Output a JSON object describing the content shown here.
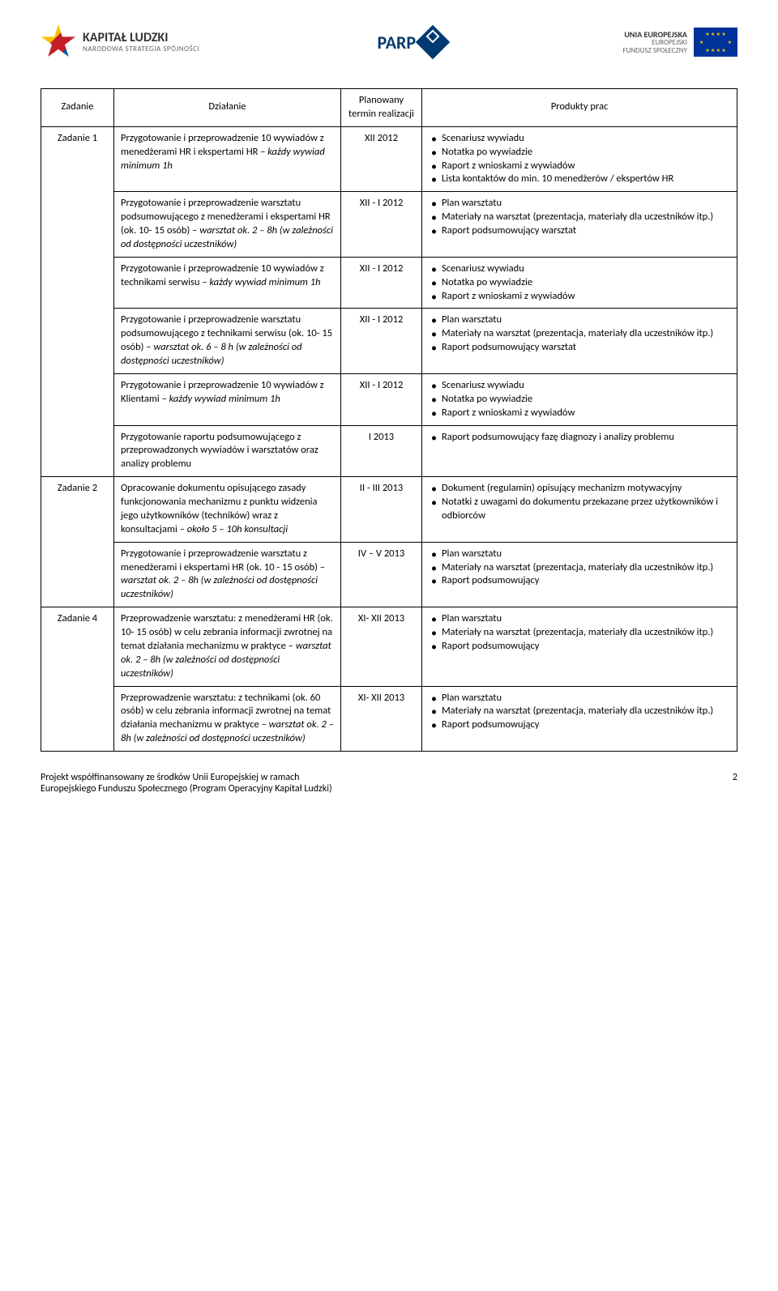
{
  "logos": {
    "left_title": "KAPITAŁ LUDZKI",
    "left_sub": "NARODOWA STRATEGIA SPÓJNOŚCI",
    "center": "PARP",
    "right_title": "UNIA EUROPEJSKA",
    "right_sub1": "EUROPEJSKI",
    "right_sub2": "FUNDUSZ SPOŁECZNY"
  },
  "headers": {
    "zadanie": "Zadanie",
    "dzialanie": "Działanie",
    "termin": "Planowany termin realizacji",
    "produkty": "Produkty prac"
  },
  "zadanie1_label": "Zadanie 1",
  "zadanie2_label": "Zadanie 2",
  "zadanie4_label": "Zadanie 4",
  "rows": [
    {
      "dzial": "Przygotowanie i przeprowadzenie 10 wywiadów z menedżerami HR i ekspertami HR – każdy wywiad minimum 1h",
      "dzial_italic": "każdy wywiad minimum 1h",
      "termin": "XII 2012",
      "prod": [
        "Scenariusz wywiadu",
        "Notatka po wywiadzie",
        "Raport z wnioskami z wywiadów",
        "Lista kontaktów do min. 10 menedżerów / ekspertów HR"
      ]
    },
    {
      "dzial_p1": "Przygotowanie i przeprowadzenie warsztatu podsumowującego z menedżerami i ekspertami HR (ok. 10- 15 osób) – ",
      "dzial_it": "warsztat ok. 2 – 8h (w zależności od dostępności uczestników)",
      "termin": "XII - I 2012",
      "prod": [
        "Plan warsztatu",
        "Materiały na warsztat (prezentacja, materiały dla uczestników itp.)",
        "Raport podsumowujący warsztat"
      ]
    },
    {
      "dzial_p1": "Przygotowanie i przeprowadzenie 10 wywiadów z technikami serwisu – ",
      "dzial_it": "każdy wywiad minimum 1h",
      "termin": "XII - I 2012",
      "prod": [
        "Scenariusz wywiadu",
        "Notatka po wywiadzie",
        "Raport z wnioskami z wywiadów"
      ]
    },
    {
      "dzial_p1": "Przygotowanie i przeprowadzenie warsztatu podsumowującego z technikami serwisu (ok. 10- 15 osób) – ",
      "dzial_it": "warsztat ok. 6 – 8 h (w zależności od dostępności uczestników)",
      "termin": "XII - I 2012",
      "prod": [
        "Plan warsztatu",
        "Materiały na warsztat (prezentacja, materiały dla uczestników itp.)",
        "Raport podsumowujący warsztat"
      ]
    },
    {
      "dzial_p1": "Przygotowanie i przeprowadzenie 10 wywiadów z Klientami  – ",
      "dzial_it": "każdy wywiad minimum 1h",
      "termin": "XII - I 2012",
      "prod": [
        "Scenariusz wywiadu",
        "Notatka po wywiadzie",
        "Raport z wnioskami z wywiadów"
      ]
    },
    {
      "dzial_p1": "Przygotowanie raportu podsumowującego z przeprowadzonych wywiadów i warsztatów oraz analizy problemu",
      "dzial_it": "",
      "termin": "I 2013",
      "prod": [
        "Raport podsumowujący fazę diagnozy i analizy problemu"
      ]
    },
    {
      "dzial_p1": "Opracowanie dokumentu opisującego zasady funkcjonowania mechanizmu z punktu widzenia jego użytkowników (techników) wraz z konsultacjami – ",
      "dzial_it": "około 5 – 10h konsultacji",
      "termin": "II  - III 2013",
      "prod": [
        "Dokument (regulamin) opisujący mechanizm motywacyjny",
        "Notatki z uwagami do dokumentu przekazane przez użytkowników i odbiorców"
      ]
    },
    {
      "dzial_p1": "Przygotowanie i przeprowadzenie warsztatu z menedżerami i ekspertami HR (ok. 10 - 15 osób)  – ",
      "dzial_it": "warsztat ok. 2 – 8h (w zależności od dostępności uczestników)",
      "termin": "IV – V 2013",
      "prod": [
        "Plan warsztatu",
        "Materiały na warsztat (prezentacja, materiały dla uczestników itp.)",
        "Raport podsumowujący"
      ]
    },
    {
      "dzial_p1": "Przeprowadzenie warsztatu: z menedżerami HR (ok. 10- 15 osób)  w celu zebrania informacji zwrotnej na temat działania mechanizmu w praktyce – ",
      "dzial_it": "warsztat ok. 2 – 8h (w zależności od dostępności uczestników)",
      "termin": "XI- XII 2013",
      "prod": [
        "Plan warsztatu",
        "Materiały na warsztat (prezentacja, materiały dla uczestników itp.)",
        "Raport podsumowujący"
      ]
    },
    {
      "dzial_p1": "Przeprowadzenie warsztatu: z technikami (ok. 60 osób)  w celu zebrania informacji zwrotnej na temat działania mechanizmu w praktyce – ",
      "dzial_it": "warsztat ok. 2 – 8h (w zależności od dostępności uczestników)",
      "termin": "XI- XII 2013",
      "prod": [
        "Plan warsztatu",
        "Materiały na warsztat (prezentacja, materiały dla uczestników itp.)",
        "Raport podsumowujący"
      ]
    }
  ],
  "footer": {
    "line1": "Projekt współfinansowany ze środków Unii Europejskiej w ramach",
    "line2": "Europejskiego Funduszu Społecznego (Program Operacyjny Kapitał Ludzki)",
    "page": "2"
  },
  "colors": {
    "text": "#000000",
    "border": "#000000",
    "bg": "#ffffff",
    "eu_blue": "#003399",
    "eu_gold": "#ffcc00",
    "parp_blue": "#003a70"
  }
}
